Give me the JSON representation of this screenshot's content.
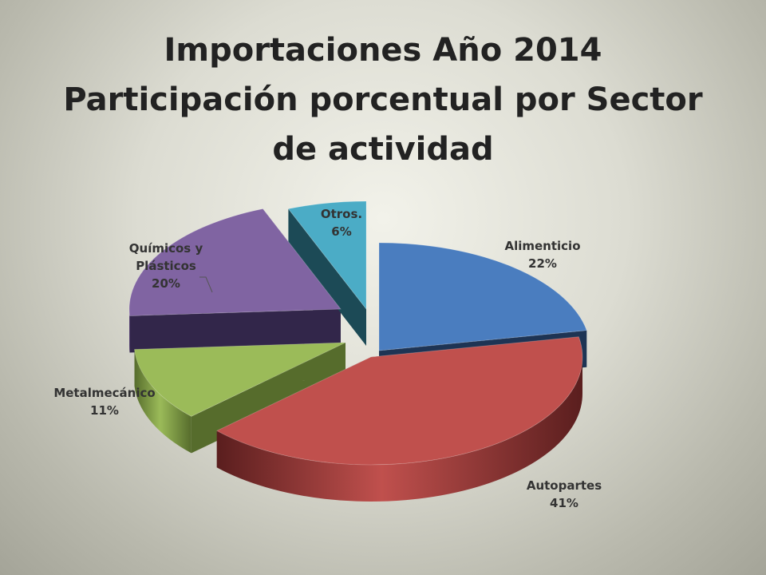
{
  "title": {
    "line1": "Importaciones Año 2014",
    "line2": "Participación porcentual por Sector",
    "line3": "de actividad"
  },
  "chart_data": {
    "type": "pie",
    "title": "Importaciones Año 2014 Participación porcentual por Sector de actividad",
    "style": "3d-exploded",
    "legend": "none",
    "slices": [
      {
        "name": "Alimenticio",
        "value": 22,
        "label": "22%",
        "color": "#4a7dbf",
        "side": "#1e3454"
      },
      {
        "name": "Autopartes",
        "value": 41,
        "label": "41%",
        "color": "#c0504d",
        "side": "#5a1e1e"
      },
      {
        "name": "Metalmecánico",
        "value": 11,
        "label": "11%",
        "color": "#9bbb59",
        "side": "#566c2c"
      },
      {
        "name": "Químicos y Plásticos",
        "value": 20,
        "label": "20%",
        "color": "#8064a2",
        "side": "#32264a"
      },
      {
        "name": "Otros.",
        "value": 6,
        "label": "6%",
        "color": "#4bacc6",
        "side": "#1c4a56"
      }
    ]
  }
}
